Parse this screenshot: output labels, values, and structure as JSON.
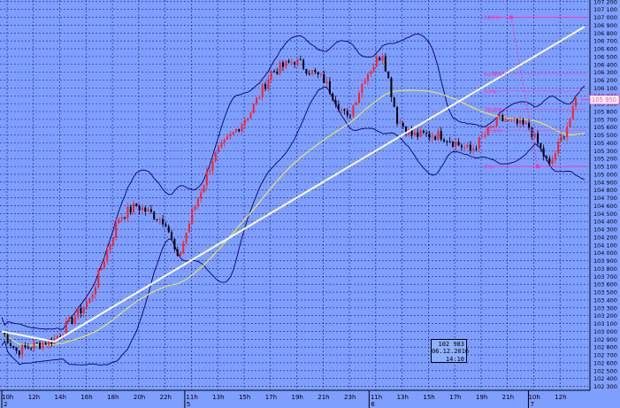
{
  "colors": {
    "background": "#7f9fff",
    "grid": "#1a1a8c",
    "candle_up": "#ff2020",
    "candle_down": "#000000",
    "bollinger": "#000066",
    "moving_average": "#e6e65a",
    "trendline": "#ffffff",
    "fibonacci": "#ff33aa",
    "price_label_bg": "#ffffff",
    "axis_text": "#000000"
  },
  "chart_data": {
    "type": "candlestick",
    "instrument_timeframe": "intraday",
    "ylim": [
      102250,
      107220
    ],
    "y_ticks": [
      102300,
      102400,
      102500,
      102600,
      102700,
      102800,
      102900,
      103000,
      103100,
      103200,
      103300,
      103400,
      103500,
      103600,
      103700,
      103800,
      103900,
      104000,
      104100,
      104200,
      104300,
      104400,
      104500,
      104600,
      104700,
      104800,
      104900,
      105000,
      105100,
      105200,
      105300,
      105400,
      105500,
      105600,
      105700,
      105800,
      105900,
      106000,
      106100,
      106200,
      106300,
      106400,
      106500,
      106600,
      106700,
      106800,
      106900,
      107000,
      107100,
      107200
    ],
    "y_tick_labels": [
      "102 300",
      "102 400",
      "102 500",
      "102 600",
      "102 700",
      "102 800",
      "102 900",
      "103 000",
      "103 100",
      "103 200",
      "103 300",
      "103 400",
      "103 500",
      "103 600",
      "103 700",
      "103 800",
      "103 900",
      "104 000",
      "104 100",
      "104 200",
      "104 300",
      "104 400",
      "104 500",
      "104 600",
      "104 700",
      "104 800",
      "104 900",
      "105 000",
      "105 100",
      "105 200",
      "105 300",
      "105 400",
      "105 500",
      "105 600",
      "105 700",
      "105 800",
      "105 900",
      "106 000",
      "106 100",
      "106 200",
      "106 300",
      "106 400",
      "106 500",
      "106 600",
      "106 700",
      "106 800",
      "106 900",
      "107 000",
      "107 100",
      "107 200"
    ],
    "x_time_labels": [
      "10h",
      "12h",
      "14h",
      "16h",
      "18h",
      "20h",
      "22h",
      "11h",
      "13h",
      "15h",
      "17h",
      "19h",
      "21h",
      "23h",
      "11h",
      "13h",
      "15h",
      "17h",
      "19h",
      "21h",
      "10h",
      "12h"
    ],
    "date_markers": [
      "2",
      "5",
      "6",
      "7"
    ],
    "current_price": 105950,
    "current_price_label": "105 950",
    "key_points": [
      {
        "bar": 0,
        "price": 103000
      },
      {
        "bar": 5,
        "price": 102750
      },
      {
        "bar": 18,
        "price": 102900
      },
      {
        "bar": 30,
        "price": 103400
      },
      {
        "bar": 40,
        "price": 104450
      },
      {
        "bar": 46,
        "price": 104600
      },
      {
        "bar": 56,
        "price": 104400
      },
      {
        "bar": 60,
        "price": 103900
      },
      {
        "bar": 65,
        "price": 104500
      },
      {
        "bar": 72,
        "price": 105200
      },
      {
        "bar": 85,
        "price": 105800
      },
      {
        "bar": 92,
        "price": 106300
      },
      {
        "bar": 100,
        "price": 106450
      },
      {
        "bar": 110,
        "price": 106200
      },
      {
        "bar": 118,
        "price": 105700
      },
      {
        "bar": 124,
        "price": 106250
      },
      {
        "bar": 130,
        "price": 106550
      },
      {
        "bar": 135,
        "price": 105700
      },
      {
        "bar": 140,
        "price": 105500
      },
      {
        "bar": 150,
        "price": 105500
      },
      {
        "bar": 160,
        "price": 105300
      },
      {
        "bar": 170,
        "price": 105700
      },
      {
        "bar": 180,
        "price": 105600
      },
      {
        "bar": 187,
        "price": 105100
      },
      {
        "bar": 195,
        "price": 105800
      },
      {
        "bar": 196,
        "price": 105950
      }
    ],
    "trendlines": [
      {
        "from": {
          "bar": 0,
          "price": 103000
        },
        "to": {
          "bar": 18,
          "price": 102870
        }
      },
      {
        "from": {
          "bar": 18,
          "price": 102870
        },
        "to": {
          "bar": 199,
          "price": 106880
        }
      }
    ],
    "fibonacci": {
      "levels": [
        {
          "label": "100%",
          "price": 107000
        },
        {
          "label": "61.8%",
          "price": 106280
        },
        {
          "label": "50%",
          "price": 106060
        },
        {
          "label": "38.2%",
          "price": 105830
        },
        {
          "label": "23.6%",
          "price": 105560
        },
        {
          "label": "0%",
          "price": 105100
        }
      ]
    },
    "info_box": {
      "value": "102 983",
      "date": "06.12.2016",
      "time": "14:10"
    }
  }
}
